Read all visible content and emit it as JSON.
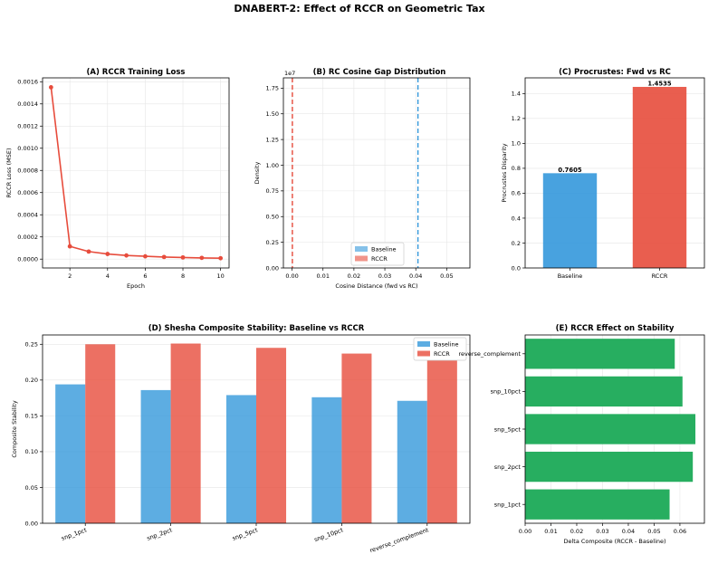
{
  "suptitle": "DNABERT-2: Effect of RCCR on Geometric Tax",
  "colors": {
    "baseline": "#3498db",
    "rccr": "#e74c3c",
    "green": "#27ae60",
    "line": "#e74c3c",
    "grid": "#e6e6e6"
  },
  "chart_data": [
    {
      "id": "A",
      "type": "line",
      "title": "(A) RCCR Training Loss",
      "xlabel": "Epoch",
      "ylabel": "RCCR Loss (MSE)",
      "x": [
        1,
        2,
        3,
        4,
        5,
        6,
        7,
        8,
        9,
        10
      ],
      "y": [
        0.00155,
        0.000115,
        6.8e-05,
        4.6e-05,
        3.3e-05,
        2.5e-05,
        1.9e-05,
        1.5e-05,
        1.1e-05,
        8e-06
      ],
      "xlim": [
        0.55,
        10.45
      ],
      "ylim": [
        -8e-05,
        0.001635
      ],
      "xticks": [
        2,
        4,
        6,
        8,
        10
      ],
      "xtick_labels": [
        "2",
        "4",
        "6",
        "8",
        "10"
      ],
      "yticks": [
        0,
        0.0002,
        0.0004,
        0.0006,
        0.0008,
        0.001,
        0.0012,
        0.0014,
        0.0016
      ],
      "ytick_labels": [
        "0.0000",
        "0.0002",
        "0.0004",
        "0.0006",
        "0.0008",
        "0.0010",
        "0.0012",
        "0.0014",
        "0.0016"
      ]
    },
    {
      "id": "B",
      "type": "histogram",
      "title": "(B) RC Cosine Gap Distribution",
      "xlabel": "Cosine Distance (fwd vs RC)",
      "ylabel": "Density",
      "offset_text": "1e7",
      "xlim": [
        -0.0028,
        0.0575
      ],
      "ylim": [
        0,
        1.85
      ],
      "xticks": [
        0,
        0.01,
        0.02,
        0.03,
        0.04,
        0.05
      ],
      "xtick_labels": [
        "0.00",
        "0.01",
        "0.02",
        "0.03",
        "0.04",
        "0.05"
      ],
      "yticks": [
        0,
        0.25,
        0.5,
        0.75,
        1,
        1.25,
        1.5,
        1.75
      ],
      "ytick_labels": [
        "0.00",
        "0.25",
        "0.50",
        "0.75",
        "1.00",
        "1.25",
        "1.50",
        "1.75"
      ],
      "vlines": [
        {
          "series": "RCCR",
          "x": 0.0001
        },
        {
          "series": "Baseline",
          "x": 0.0407
        }
      ],
      "legend": [
        "Baseline",
        "RCCR"
      ]
    },
    {
      "id": "C",
      "type": "bar",
      "title": "(C) Procrustes: Fwd vs RC",
      "ylabel": "Procrustes Disparity",
      "categories": [
        "Baseline",
        "RCCR"
      ],
      "values": [
        0.7605,
        1.4535
      ],
      "value_labels": [
        "0.7605",
        "1.4535"
      ],
      "ylim": [
        0,
        1.526
      ],
      "yticks": [
        0,
        0.2,
        0.4,
        0.6,
        0.8,
        1,
        1.2,
        1.4
      ],
      "ytick_labels": [
        "0.0",
        "0.2",
        "0.4",
        "0.6",
        "0.8",
        "1.0",
        "1.2",
        "1.4"
      ]
    },
    {
      "id": "D",
      "type": "grouped-bar",
      "title": "(D) Shesha Composite Stability: Baseline vs RCCR",
      "ylabel": "Composite Stability",
      "categories": [
        "snp_1pct",
        "snp_2pct",
        "snp_5pct",
        "snp_10pct",
        "reverse_complement"
      ],
      "series": [
        {
          "name": "Baseline",
          "values": [
            0.194,
            0.186,
            0.179,
            0.176,
            0.171
          ]
        },
        {
          "name": "RCCR",
          "values": [
            0.25,
            0.251,
            0.245,
            0.237,
            0.229
          ]
        }
      ],
      "ylim": [
        0,
        0.263
      ],
      "yticks": [
        0,
        0.05,
        0.1,
        0.15,
        0.2,
        0.25
      ],
      "ytick_labels": [
        "0.00",
        "0.05",
        "0.10",
        "0.15",
        "0.20",
        "0.25"
      ],
      "legend": [
        "Baseline",
        "RCCR"
      ]
    },
    {
      "id": "E",
      "type": "hbar",
      "title": "(E) RCCR Effect on Stability",
      "xlabel": "Delta Composite (RCCR - Baseline)",
      "categories": [
        "snp_1pct",
        "snp_2pct",
        "snp_5pct",
        "snp_10pct",
        "reverse_complement"
      ],
      "values": [
        0.056,
        0.065,
        0.066,
        0.061,
        0.058
      ],
      "xlim": [
        0,
        0.0695
      ],
      "xticks": [
        0,
        0.01,
        0.02,
        0.03,
        0.04,
        0.05,
        0.06
      ],
      "xtick_labels": [
        "0.00",
        "0.01",
        "0.02",
        "0.03",
        "0.04",
        "0.05",
        "0.06"
      ]
    }
  ]
}
